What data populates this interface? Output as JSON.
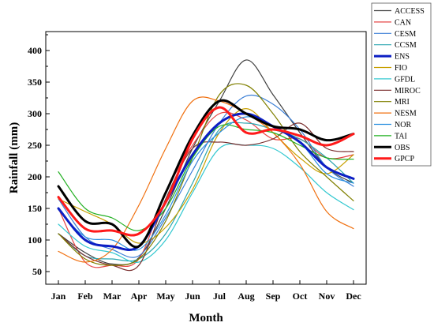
{
  "chart_data": {
    "type": "line",
    "xlabel": "Month",
    "ylabel": "Rainfall (mm)",
    "categories": [
      "Jan",
      "Feb",
      "Mar",
      "Apr",
      "May",
      "Jun",
      "Jul",
      "Aug",
      "Sep",
      "Oct",
      "Nov",
      "Dec"
    ],
    "ylim": [
      30,
      430
    ],
    "yticks": [
      50,
      100,
      150,
      200,
      250,
      300,
      350,
      400
    ],
    "grid": false,
    "legend_position": "right",
    "series": [
      {
        "name": "ACCESS",
        "color": "#404040",
        "width": 1.2,
        "values": [
          110,
          80,
          62,
          72,
          150,
          245,
          320,
          385,
          330,
          270,
          215,
          190
        ]
      },
      {
        "name": "CAN",
        "color": "#e64545",
        "width": 1.2,
        "values": [
          150,
          65,
          60,
          70,
          175,
          250,
          300,
          290,
          260,
          260,
          230,
          235
        ]
      },
      {
        "name": "CESM",
        "color": "#3b7fd6",
        "width": 1.2,
        "values": [
          165,
          105,
          85,
          75,
          135,
          210,
          285,
          328,
          315,
          275,
          215,
          185
        ]
      },
      {
        "name": "CCSM",
        "color": "#2aa6b0",
        "width": 1.2,
        "values": [
          110,
          75,
          70,
          70,
          110,
          190,
          275,
          285,
          275,
          260,
          230,
          190
        ]
      },
      {
        "name": "ENS",
        "color": "#0c1ec4",
        "width": 3,
        "values": [
          150,
          100,
          90,
          90,
          160,
          235,
          285,
          300,
          280,
          255,
          215,
          197
        ]
      },
      {
        "name": "FIO",
        "color": "#c8a000",
        "width": 1.2,
        "values": [
          165,
          145,
          125,
          95,
          120,
          180,
          270,
          308,
          270,
          230,
          205,
          235
        ]
      },
      {
        "name": "GFDL",
        "color": "#33c8d0",
        "width": 1.2,
        "values": [
          125,
          90,
          80,
          65,
          100,
          175,
          245,
          250,
          245,
          215,
          175,
          148
        ]
      },
      {
        "name": "MIROC",
        "color": "#7a2e2e",
        "width": 1.2,
        "values": [
          110,
          75,
          60,
          60,
          165,
          245,
          255,
          250,
          260,
          285,
          245,
          240
        ]
      },
      {
        "name": "MRI",
        "color": "#808000",
        "width": 1.2,
        "values": [
          110,
          70,
          60,
          70,
          130,
          230,
          330,
          345,
          300,
          240,
          200,
          162
        ]
      },
      {
        "name": "NESM",
        "color": "#f07010",
        "width": 1.2,
        "values": [
          82,
          65,
          85,
          155,
          245,
          320,
          320,
          300,
          270,
          220,
          145,
          118
        ]
      },
      {
        "name": "NOR",
        "color": "#2a90e0",
        "width": 1.2,
        "values": [
          148,
          105,
          100,
          85,
          140,
          225,
          270,
          295,
          280,
          255,
          205,
          190
        ]
      },
      {
        "name": "TAI",
        "color": "#22b022",
        "width": 1.2,
        "values": [
          208,
          150,
          135,
          115,
          150,
          230,
          280,
          275,
          270,
          250,
          230,
          228
        ]
      },
      {
        "name": "OBS",
        "color": "#000000",
        "width": 3,
        "values": [
          185,
          130,
          125,
          90,
          175,
          265,
          320,
          300,
          280,
          275,
          258,
          268
        ]
      },
      {
        "name": "GPCP",
        "color": "#ff1a1a",
        "width": 3,
        "values": [
          168,
          118,
          115,
          110,
          160,
          260,
          310,
          270,
          275,
          265,
          250,
          268
        ]
      }
    ]
  }
}
